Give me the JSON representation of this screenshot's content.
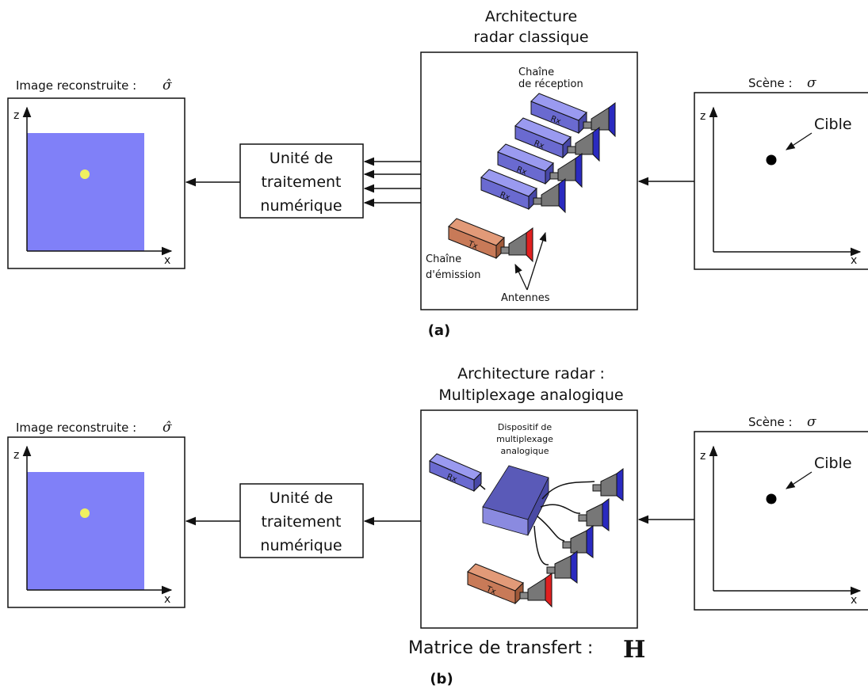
{
  "panel_a": {
    "title_line1": "Architecture",
    "title_line2": "radar classique",
    "recon_title": "Image reconstruite :",
    "recon_symbol": "σ̂",
    "scene_title": "Scène :",
    "scene_symbol": "σ",
    "processing_line1": "Unité de",
    "processing_line2": "traitement",
    "processing_line3": "numérique",
    "rx_chain_line1": "Chaîne",
    "rx_chain_line2": "de réception",
    "tx_chain_line1": "Chaîne",
    "tx_chain_line2": "d'émission",
    "antennas_label": "Antennes",
    "rx_label": "Rx",
    "tx_label": "Tx",
    "target_label": "Cible",
    "axis_x": "x",
    "axis_z": "z",
    "caption": "(a)"
  },
  "panel_b": {
    "title_line1": "Architecture radar :",
    "title_line2": "Multiplexage analogique",
    "recon_title": "Image reconstruite :",
    "recon_symbol": "σ̂",
    "scene_title": "Scène :",
    "scene_symbol": "σ",
    "processing_line1": "Unité de",
    "processing_line2": "traitement",
    "processing_line3": "numérique",
    "mux_line1": "Dispositif de",
    "mux_line2": "multiplexage",
    "mux_line3": "analogique",
    "rx_label": "Rx",
    "tx_label": "Tx",
    "target_label": "Cible",
    "axis_x": "x",
    "axis_z": "z",
    "transfer_label": "Matrice de transfert :",
    "transfer_symbol": "H",
    "caption": "(b)"
  },
  "colors": {
    "image_fill": "#8080f8",
    "target_dot": "#f0f060",
    "rx_box": "#7070d8",
    "tx_box": "#d08060",
    "horn_blue": "#3030c0",
    "horn_red": "#e02020",
    "mux_box": "#5a5ab8"
  }
}
